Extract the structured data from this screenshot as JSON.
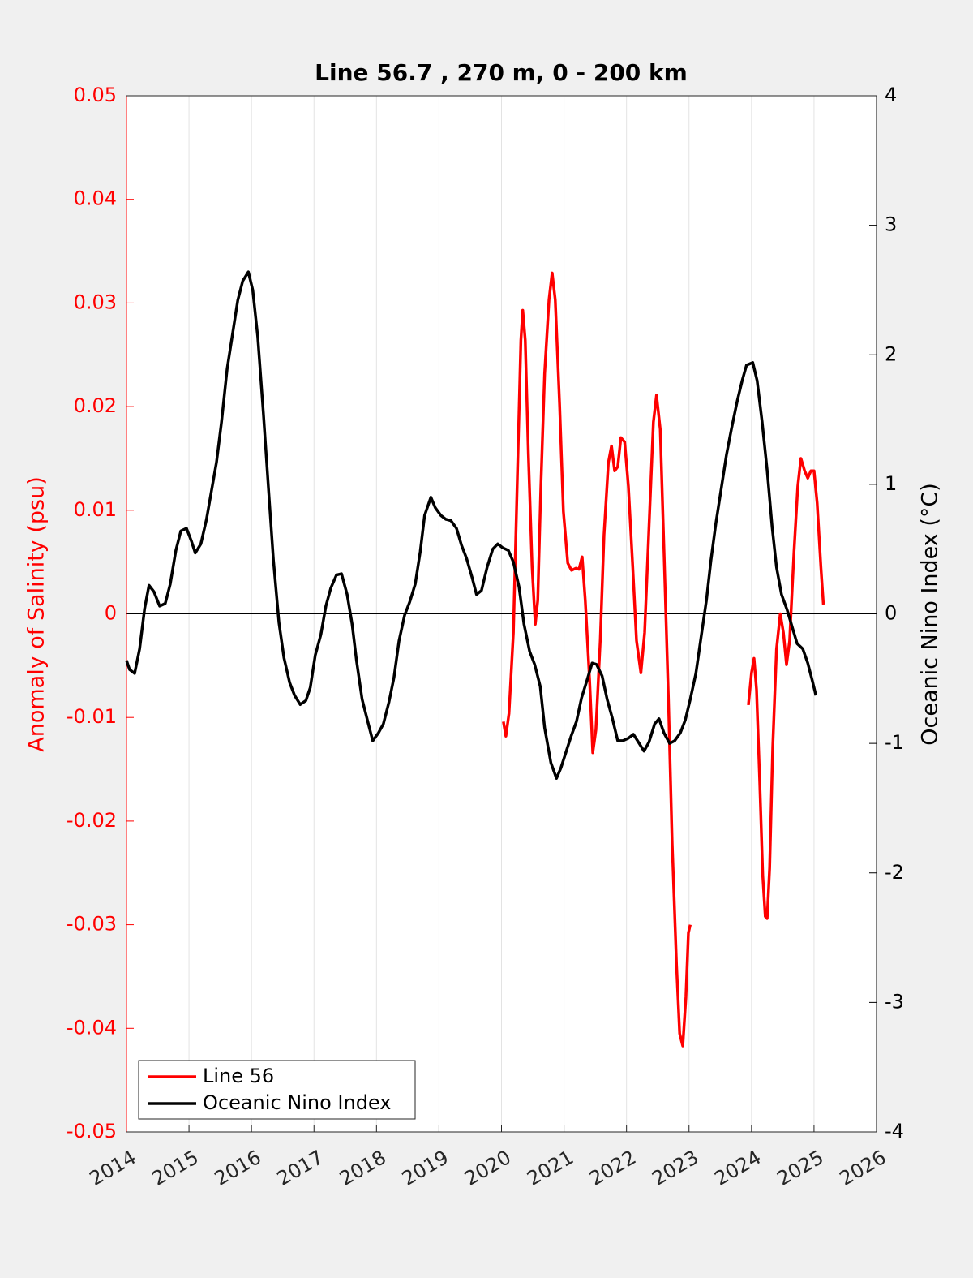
{
  "chart_data": {
    "type": "line",
    "title": "Line 56.7 , 270 m, 0 - 200 km",
    "ylabel": "Anomaly of Salinity (psu)",
    "y2label": "Oceanic Nino Index (°C)",
    "xlim": [
      2014,
      2026
    ],
    "xticks": [
      2014,
      2015,
      2016,
      2017,
      2018,
      2019,
      2020,
      2021,
      2022,
      2023,
      2024,
      2025,
      2026
    ],
    "ylim": [
      -0.05,
      0.05
    ],
    "yticks": [
      -0.05,
      -0.04,
      -0.03,
      -0.02,
      -0.01,
      0,
      0.01,
      0.02,
      0.03,
      0.04,
      0.05
    ],
    "y2lim": [
      -4,
      4
    ],
    "y2ticks": [
      -4,
      -3,
      -2,
      -1,
      0,
      1,
      2,
      3,
      4
    ],
    "yaxis_color": "#ff0000",
    "y2axis_color": "#000000",
    "xgrid": true,
    "zero_line": true,
    "legend": "lower left",
    "series": [
      {
        "name": "Line 56",
        "color": "#ff0000",
        "axis": "y",
        "x": [
          2020.03,
          2020.07,
          2020.12,
          2020.19,
          2020.25,
          2020.31,
          2020.34,
          2020.38,
          2020.43,
          2020.49,
          2020.54,
          2020.58,
          2020.63,
          2020.69,
          2020.76,
          2020.81,
          2020.86,
          2020.93,
          2020.99,
          2021.06,
          2021.12,
          2021.19,
          2021.24,
          2021.29,
          2021.34,
          2021.41,
          2021.46,
          2021.51,
          2021.58,
          2021.64,
          2021.71,
          2021.76,
          2021.81,
          2021.86,
          2021.91,
          2021.97,
          2022.03,
          2022.1,
          2022.16,
          2022.23,
          2022.29,
          2022.36,
          2022.43,
          2022.48,
          2022.54,
          2022.6,
          2022.67,
          2022.73,
          2022.8,
          2022.85,
          2022.9,
          2022.95,
          2022.99,
          2023.02,
          2023.5,
          2023.95,
          2024.0,
          2024.04,
          2024.08,
          2024.13,
          2024.18,
          2024.22,
          2024.25,
          2024.29,
          2024.34,
          2024.4,
          2024.46,
          2024.51,
          2024.56,
          2024.61,
          2024.68,
          2024.74,
          2024.79,
          2024.85,
          2024.9,
          2024.95,
          2025.0,
          2025.05,
          2025.11,
          2025.15
        ],
        "values": [
          -0.0104,
          -0.0118,
          -0.0096,
          -0.0018,
          0.0123,
          0.0264,
          0.0293,
          0.0264,
          0.0154,
          0.0045,
          -0.001,
          0.0013,
          0.0123,
          0.0232,
          0.0303,
          0.0329,
          0.0303,
          0.0201,
          0.0099,
          0.0049,
          0.0042,
          0.0044,
          0.0043,
          0.0055,
          0.0013,
          -0.0065,
          -0.0134,
          -0.0112,
          -0.0026,
          0.0076,
          0.0146,
          0.0162,
          0.0138,
          0.0142,
          0.017,
          0.0166,
          0.0123,
          0.0045,
          -0.0026,
          -0.0057,
          -0.0018,
          0.0084,
          0.0185,
          0.0211,
          0.0178,
          0.006,
          -0.0081,
          -0.0221,
          -0.0339,
          -0.0405,
          -0.0417,
          -0.037,
          -0.0308,
          -0.03,
          null,
          -0.0088,
          -0.0057,
          -0.0043,
          -0.0073,
          -0.0159,
          -0.0253,
          -0.0292,
          -0.0294,
          -0.0245,
          -0.0128,
          -0.0034,
          0,
          -0.0018,
          -0.0049,
          -0.0026,
          0.006,
          0.0123,
          0.015,
          0.0138,
          0.0131,
          0.0138,
          0.0138,
          0.0107,
          0.0045,
          0.0009
        ]
      },
      {
        "name": "Oceanic Nino Index",
        "color": "#000000",
        "axis": "y2",
        "x": [
          2014.0,
          2014.05,
          2014.13,
          2014.21,
          2014.29,
          2014.36,
          2014.44,
          2014.53,
          2014.62,
          2014.7,
          2014.79,
          2014.87,
          2014.96,
          2015.04,
          2015.1,
          2015.19,
          2015.28,
          2015.36,
          2015.44,
          2015.52,
          2015.61,
          2015.7,
          2015.78,
          2015.86,
          2015.95,
          2016.02,
          2016.1,
          2016.19,
          2016.27,
          2016.35,
          2016.44,
          2016.52,
          2016.61,
          2016.69,
          2016.78,
          2016.87,
          2016.94,
          2017.02,
          2017.11,
          2017.19,
          2017.27,
          2017.36,
          2017.44,
          2017.53,
          2017.61,
          2017.68,
          2017.77,
          2017.87,
          2017.94,
          2018.03,
          2018.11,
          2018.2,
          2018.28,
          2018.36,
          2018.45,
          2018.53,
          2018.62,
          2018.7,
          2018.77,
          2018.87,
          2018.94,
          2019.03,
          2019.11,
          2019.19,
          2019.28,
          2019.36,
          2019.44,
          2019.53,
          2019.6,
          2019.68,
          2019.77,
          2019.86,
          2019.94,
          2020.02,
          2020.11,
          2020.19,
          2020.28,
          2020.36,
          2020.45,
          2020.53,
          2020.62,
          2020.69,
          2020.79,
          2020.88,
          2020.95,
          2021.03,
          2021.11,
          2021.2,
          2021.28,
          2021.37,
          2021.45,
          2021.52,
          2021.61,
          2021.69,
          2021.77,
          2021.86,
          2021.94,
          2022.03,
          2022.11,
          2022.19,
          2022.28,
          2022.36,
          2022.45,
          2022.52,
          2022.6,
          2022.69,
          2022.77,
          2022.86,
          2022.94,
          2023.02,
          2023.11,
          2023.19,
          2023.28,
          2023.35,
          2023.43,
          2023.52,
          2023.6,
          2023.68,
          2023.77,
          2023.85,
          2023.92,
          2024.02,
          2024.09,
          2024.17,
          2024.25,
          2024.33,
          2024.4,
          2024.48,
          2024.57,
          2024.65,
          2024.73,
          2024.82,
          2024.9,
          2024.98,
          2025.03
        ],
        "values": [
          -0.36,
          -0.43,
          -0.46,
          -0.27,
          0.04,
          0.22,
          0.17,
          0.06,
          0.08,
          0.23,
          0.49,
          0.64,
          0.66,
          0.56,
          0.47,
          0.54,
          0.73,
          0.95,
          1.17,
          1.48,
          1.89,
          2.17,
          2.42,
          2.57,
          2.64,
          2.5,
          2.14,
          1.55,
          0.98,
          0.42,
          -0.07,
          -0.34,
          -0.53,
          -0.63,
          -0.7,
          -0.67,
          -0.57,
          -0.32,
          -0.16,
          0.06,
          0.2,
          0.3,
          0.31,
          0.15,
          -0.08,
          -0.36,
          -0.66,
          -0.85,
          -0.98,
          -0.92,
          -0.85,
          -0.68,
          -0.49,
          -0.21,
          -0.01,
          0.09,
          0.23,
          0.48,
          0.76,
          0.9,
          0.82,
          0.76,
          0.73,
          0.72,
          0.66,
          0.53,
          0.43,
          0.28,
          0.15,
          0.18,
          0.36,
          0.5,
          0.54,
          0.51,
          0.49,
          0.4,
          0.21,
          -0.08,
          -0.29,
          -0.39,
          -0.56,
          -0.88,
          -1.15,
          -1.27,
          -1.19,
          -1.07,
          -0.95,
          -0.83,
          -0.65,
          -0.51,
          -0.38,
          -0.39,
          -0.48,
          -0.66,
          -0.8,
          -0.98,
          -0.98,
          -0.96,
          -0.93,
          -0.99,
          -1.06,
          -0.99,
          -0.85,
          -0.81,
          -0.92,
          -1.0,
          -0.98,
          -0.92,
          -0.82,
          -0.66,
          -0.46,
          -0.19,
          0.11,
          0.41,
          0.7,
          0.98,
          1.23,
          1.43,
          1.64,
          1.8,
          1.92,
          1.94,
          1.8,
          1.48,
          1.11,
          0.67,
          0.36,
          0.15,
          0.03,
          -0.1,
          -0.23,
          -0.27,
          -0.38,
          -0.53,
          -0.63
        ]
      }
    ]
  }
}
